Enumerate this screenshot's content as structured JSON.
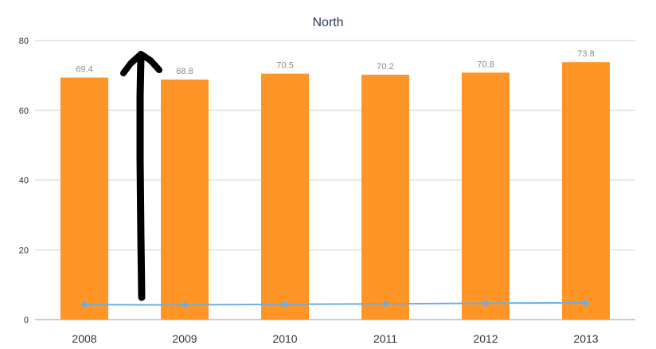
{
  "chart_data": {
    "type": "bar",
    "title": "North",
    "categories": [
      "2008",
      "2009",
      "2010",
      "2011",
      "2012",
      "2013"
    ],
    "series": [
      {
        "type": "bar",
        "values": [
          69.4,
          68.8,
          70.5,
          70.2,
          70.8,
          73.8
        ],
        "color": "#ff9427",
        "data_labels": [
          "69.4",
          "68.8",
          "70.5",
          "70.2",
          "70.8",
          "73.8"
        ]
      },
      {
        "type": "line",
        "values": [
          4.3,
          4.2,
          4.4,
          4.5,
          4.7,
          4.8
        ],
        "color": "#6aaee6"
      }
    ],
    "ylim": [
      0,
      80
    ],
    "yticks": [
      "0",
      "20",
      "40",
      "60",
      "80"
    ],
    "grid": true,
    "annotation": "hand-drawn black upward arrow between 2008 and 2009"
  }
}
